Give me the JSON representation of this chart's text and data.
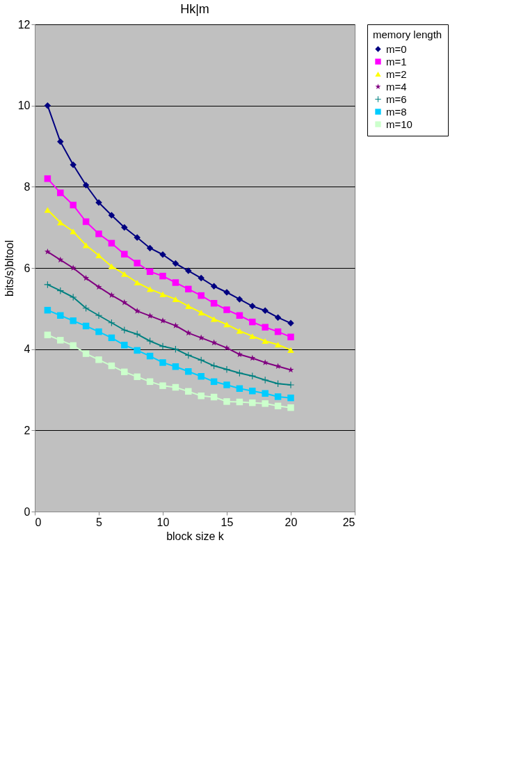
{
  "chart_data": {
    "type": "line",
    "title": "Hk|m",
    "xlabel": "block size k",
    "ylabel": "bits/s)bltool",
    "legend_title": "memory length",
    "x": [
      1,
      2,
      3,
      4,
      5,
      6,
      7,
      8,
      9,
      10,
      11,
      12,
      13,
      14,
      15,
      16,
      17,
      18,
      19,
      20
    ],
    "xlim": [
      0,
      25
    ],
    "xticks": [
      0,
      5,
      10,
      15,
      20,
      25
    ],
    "ylim": [
      0,
      12
    ],
    "yticks": [
      0,
      2,
      4,
      6,
      8,
      10,
      12
    ],
    "grid": "y",
    "legend": "top right",
    "series": [
      {
        "name": "m=0",
        "color": "#000080",
        "marker": "diamond",
        "values": [
          10.0,
          9.11,
          8.54,
          8.04,
          7.61,
          7.3,
          7.0,
          6.75,
          6.49,
          6.33,
          6.11,
          5.93,
          5.75,
          5.55,
          5.4,
          5.23,
          5.06,
          4.95,
          4.78,
          4.64
        ]
      },
      {
        "name": "m=1",
        "color": "#ff00ff",
        "marker": "square",
        "values": [
          8.2,
          7.85,
          7.55,
          7.14,
          6.84,
          6.61,
          6.34,
          6.12,
          5.91,
          5.8,
          5.64,
          5.48,
          5.32,
          5.13,
          4.97,
          4.83,
          4.67,
          4.54,
          4.43,
          4.3
        ]
      },
      {
        "name": "m=2",
        "color": "#ffff00",
        "marker": "triangle",
        "values": [
          7.43,
          7.12,
          6.9,
          6.56,
          6.31,
          6.04,
          5.85,
          5.64,
          5.48,
          5.35,
          5.23,
          5.06,
          4.9,
          4.74,
          4.61,
          4.45,
          4.32,
          4.2,
          4.11,
          3.98
        ]
      },
      {
        "name": "m=4",
        "color": "#800080",
        "marker": "star",
        "values": [
          6.4,
          6.2,
          6.0,
          5.75,
          5.53,
          5.33,
          5.15,
          4.94,
          4.82,
          4.7,
          4.58,
          4.4,
          4.28,
          4.16,
          4.03,
          3.87,
          3.78,
          3.67,
          3.58,
          3.49
        ]
      },
      {
        "name": "m=6",
        "color": "#008080",
        "marker": "cross",
        "values": [
          5.59,
          5.44,
          5.28,
          5.01,
          4.83,
          4.65,
          4.47,
          4.37,
          4.2,
          4.07,
          4.0,
          3.85,
          3.73,
          3.59,
          3.5,
          3.41,
          3.34,
          3.24,
          3.15,
          3.12
        ]
      },
      {
        "name": "m=8",
        "color": "#00ccff",
        "marker": "square",
        "values": [
          4.96,
          4.83,
          4.7,
          4.57,
          4.43,
          4.28,
          4.1,
          3.97,
          3.83,
          3.67,
          3.57,
          3.45,
          3.33,
          3.2,
          3.12,
          3.03,
          2.97,
          2.91,
          2.83,
          2.8
        ]
      },
      {
        "name": "m=10",
        "color": "#ccffcc",
        "marker": "square",
        "values": [
          4.35,
          4.22,
          4.09,
          3.89,
          3.74,
          3.59,
          3.44,
          3.32,
          3.2,
          3.1,
          3.06,
          2.96,
          2.85,
          2.82,
          2.71,
          2.7,
          2.68,
          2.66,
          2.6,
          2.56
        ]
      }
    ]
  }
}
